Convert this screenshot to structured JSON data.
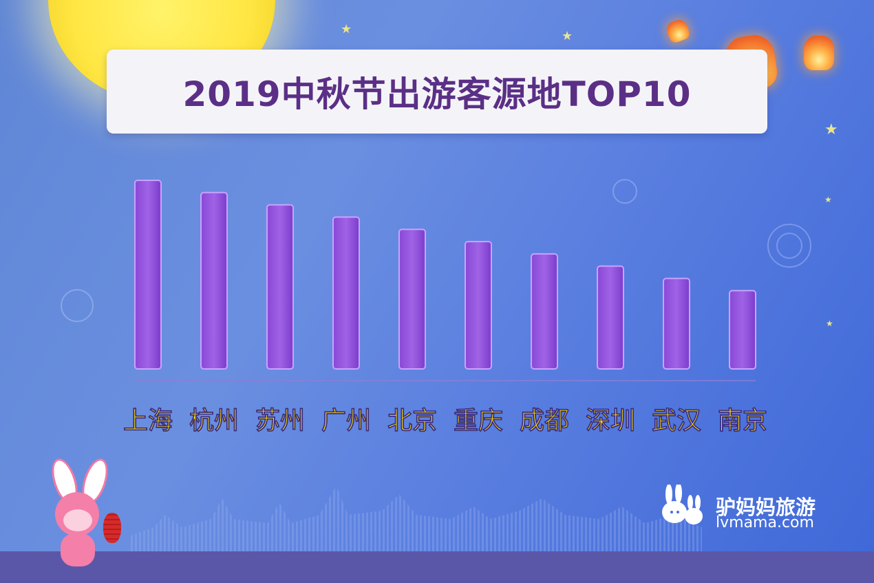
{
  "colors": {
    "bar_fill_top": "#9b5ae0",
    "bar_fill_bottom": "#7d3fcf",
    "bar_stroke": "#c9a3ff",
    "label_color": "#ffe600",
    "title_color": "#5b2f86"
  },
  "icons": [
    "moon",
    "star-icon",
    "lantern-icon",
    "rabbit-mascot",
    "red-lantern-icon",
    "lvmama-logo-icon"
  ],
  "logo": {
    "name_cn": "驴妈妈旅游",
    "domain": "lvmama.com"
  },
  "chart_data": {
    "type": "bar",
    "title": "2019中秋节出游客源地TOP10",
    "categories": [
      "上海",
      "杭州",
      "苏州",
      "广州",
      "北京",
      "重庆",
      "成都",
      "深圳",
      "武汉",
      "南京"
    ],
    "values": [
      100,
      93.5,
      87,
      80.5,
      74,
      67.5,
      61,
      54.5,
      48,
      41.5
    ],
    "xlabel": "",
    "ylabel": "",
    "ylim": [
      0,
      100
    ],
    "grid": false,
    "legend": "none"
  }
}
